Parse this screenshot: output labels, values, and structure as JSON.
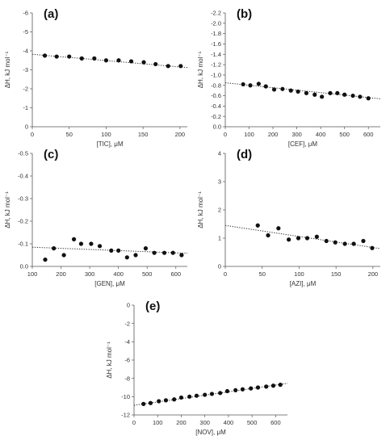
{
  "chart_data": [
    {
      "type": "scatter",
      "panel_label": "(a)",
      "xlabel": "[TIC], μM",
      "ylabel": "ΔH, kJ mol⁻¹",
      "xlim": [
        0,
        210
      ],
      "ylim": [
        -6,
        0
      ],
      "y_inverted": true,
      "x_ticks": [
        0,
        50,
        100,
        150,
        200
      ],
      "y_ticks": [
        -6,
        -5,
        -4,
        -3,
        -2,
        -1,
        0
      ],
      "x_tick_labels": [
        "0",
        "50",
        "100",
        "150",
        "200"
      ],
      "y_tick_labels": [
        "-6",
        "-5",
        "-4",
        "-3",
        "-2",
        "-1",
        "0"
      ],
      "series": [
        {
          "x": [
            17,
            33,
            50,
            67,
            84,
            100,
            117,
            134,
            151,
            167,
            184,
            201
          ],
          "y": [
            -3.75,
            -3.7,
            -3.7,
            -3.6,
            -3.6,
            -3.5,
            -3.5,
            -3.45,
            -3.4,
            -3.3,
            -3.2,
            -3.2
          ]
        }
      ],
      "trendline": {
        "x": [
          0,
          210
        ],
        "y": [
          -3.82,
          -3.12
        ]
      }
    },
    {
      "type": "scatter",
      "panel_label": "(b)",
      "xlabel": "[CEF], μM",
      "ylabel": "ΔH, kJ mol⁻¹",
      "xlim": [
        0,
        650
      ],
      "ylim": [
        -2.2,
        0
      ],
      "y_inverted": true,
      "x_ticks": [
        0,
        100,
        200,
        300,
        400,
        500,
        600
      ],
      "y_ticks": [
        -2.2,
        -2.0,
        -1.8,
        -1.6,
        -1.4,
        -1.2,
        -1.0,
        -0.8,
        -0.6,
        -0.4,
        -0.2,
        0.0
      ],
      "x_tick_labels": [
        "0",
        "100",
        "200",
        "300",
        "400",
        "500",
        "600"
      ],
      "y_tick_labels": [
        "-2.2",
        "-2.0",
        "-1.8",
        "-1.6",
        "-1.4",
        "-1.2",
        "-1.0",
        "-0.8",
        "-0.6",
        "-0.4",
        "-0.2",
        "0.0"
      ],
      "series": [
        {
          "x": [
            75,
            105,
            140,
            170,
            205,
            240,
            275,
            305,
            340,
            375,
            405,
            440,
            470,
            500,
            535,
            565,
            600
          ],
          "y": [
            -0.82,
            -0.8,
            -0.83,
            -0.78,
            -0.72,
            -0.73,
            -0.7,
            -0.68,
            -0.65,
            -0.62,
            -0.58,
            -0.65,
            -0.65,
            -0.62,
            -0.6,
            -0.58,
            -0.55
          ]
        }
      ],
      "trendline": {
        "x": [
          0,
          650
        ],
        "y": [
          -0.85,
          -0.54
        ]
      }
    },
    {
      "type": "scatter",
      "panel_label": "(c)",
      "xlabel": "[GEN], μM",
      "ylabel": "ΔH, kJ mol⁻¹",
      "xlim": [
        100,
        640
      ],
      "ylim": [
        -0.5,
        0
      ],
      "y_inverted": true,
      "x_ticks": [
        100,
        200,
        300,
        400,
        500,
        600
      ],
      "y_ticks": [
        -0.5,
        -0.4,
        -0.3,
        -0.2,
        -0.1,
        0.0
      ],
      "x_tick_labels": [
        "100",
        "200",
        "300",
        "400",
        "500",
        "600"
      ],
      "y_tick_labels": [
        "-0.5",
        "-0.4",
        "-0.3",
        "-0.2",
        "-0.1",
        "0.0"
      ],
      "series": [
        {
          "x": [
            145,
            175,
            210,
            245,
            270,
            305,
            335,
            375,
            400,
            430,
            460,
            495,
            525,
            560,
            590,
            620
          ],
          "y": [
            -0.03,
            -0.08,
            -0.05,
            -0.12,
            -0.1,
            -0.1,
            -0.09,
            -0.07,
            -0.07,
            -0.04,
            -0.05,
            -0.08,
            -0.06,
            -0.06,
            -0.06,
            -0.05
          ]
        }
      ],
      "trendline": {
        "x": [
          100,
          640
        ],
        "y": [
          -0.085,
          -0.058
        ]
      }
    },
    {
      "type": "scatter",
      "panel_label": "(d)",
      "xlabel": "[AZI], μM",
      "ylabel": "ΔH, kJ mol⁻¹",
      "xlim": [
        0,
        210
      ],
      "ylim": [
        0,
        4
      ],
      "x_ticks": [
        0,
        50,
        100,
        150,
        200
      ],
      "y_ticks": [
        0,
        1,
        2,
        3,
        4
      ],
      "x_tick_labels": [
        "0",
        "50",
        "100",
        "150",
        "200"
      ],
      "y_tick_labels": [
        "0",
        "1",
        "2",
        "3",
        "4"
      ],
      "series": [
        {
          "x": [
            44,
            58,
            72,
            86,
            99,
            111,
            124,
            137,
            149,
            162,
            174,
            187,
            199
          ],
          "y": [
            1.45,
            1.1,
            1.35,
            0.95,
            1.0,
            1.0,
            1.05,
            0.9,
            0.85,
            0.8,
            0.8,
            0.9,
            0.65
          ]
        }
      ],
      "trendline": {
        "x": [
          0,
          210
        ],
        "y": [
          1.45,
          0.63
        ]
      }
    },
    {
      "type": "scatter",
      "panel_label": "(e)",
      "xlabel": "[NOV], μM",
      "ylabel": "ΔH, kJ mol⁻¹",
      "xlim": [
        0,
        650
      ],
      "ylim": [
        -12,
        0
      ],
      "x_ticks": [
        0,
        100,
        200,
        300,
        400,
        500,
        600
      ],
      "y_ticks": [
        -12,
        -10,
        -8,
        -6,
        -4,
        -2,
        0
      ],
      "x_tick_labels": [
        "0",
        "100",
        "200",
        "300",
        "400",
        "500",
        "600"
      ],
      "y_tick_labels": [
        "-12",
        "-10",
        "-8",
        "-6",
        "-4",
        "-2",
        "0"
      ],
      "series": [
        {
          "x": [
            40,
            70,
            105,
            135,
            170,
            200,
            235,
            265,
            300,
            330,
            365,
            395,
            430,
            460,
            495,
            525,
            560,
            590,
            620
          ],
          "y": [
            -10.8,
            -10.7,
            -10.5,
            -10.4,
            -10.3,
            -10.1,
            -10.0,
            -9.9,
            -9.8,
            -9.7,
            -9.6,
            -9.4,
            -9.3,
            -9.2,
            -9.1,
            -9.0,
            -8.9,
            -8.8,
            -8.7
          ]
        }
      ],
      "trendline": {
        "x": [
          0,
          650
        ],
        "y": [
          -10.95,
          -8.55
        ]
      }
    }
  ]
}
